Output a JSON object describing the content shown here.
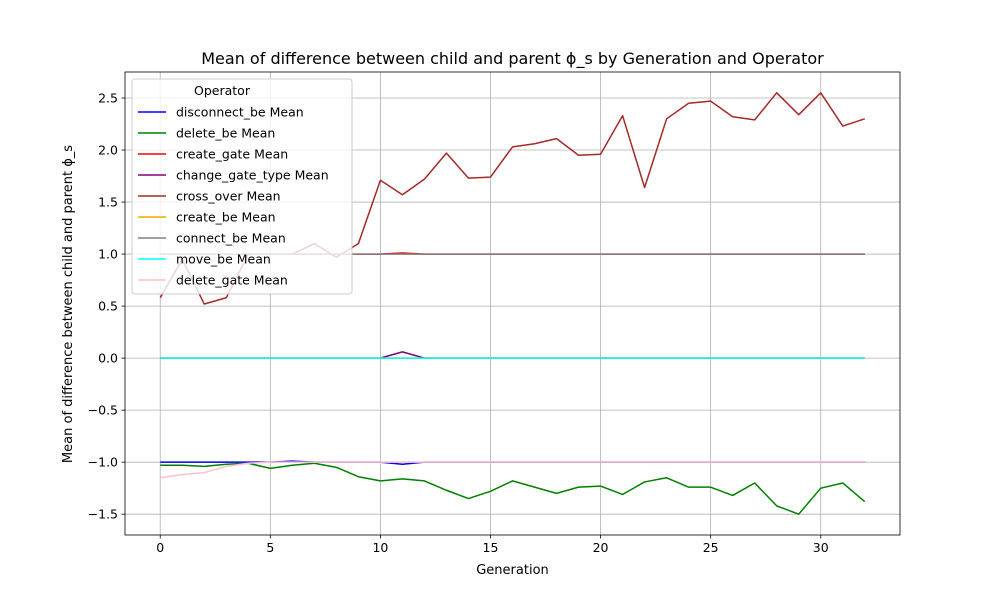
{
  "chart_data": {
    "type": "line",
    "title": "Mean of difference between child and parent ϕ_s by Generation and Operator",
    "xlabel": "Generation",
    "ylabel": "Mean of difference between child and parent ϕ_s",
    "xlim": [
      -1.6,
      33.6
    ],
    "ylim": [
      -1.7,
      2.75
    ],
    "xticks": [
      0,
      5,
      10,
      15,
      20,
      25,
      30
    ],
    "yticks": [
      -1.5,
      -1.0,
      -0.5,
      0.0,
      0.5,
      1.0,
      1.5,
      2.0,
      2.5
    ],
    "ytick_labels": [
      "−1.5",
      "−1.0",
      "−0.5",
      "0.0",
      "0.5",
      "1.0",
      "1.5",
      "2.0",
      "2.5"
    ],
    "grid": true,
    "legend_title": "Operator",
    "legend_position": "upper-left",
    "x": [
      0,
      1,
      2,
      3,
      4,
      5,
      6,
      7,
      8,
      9,
      10,
      11,
      12,
      13,
      14,
      15,
      16,
      17,
      18,
      19,
      20,
      21,
      22,
      23,
      24,
      25,
      26,
      27,
      28,
      29,
      30,
      31,
      32
    ],
    "series": [
      {
        "name": "disconnect_be Mean",
        "color": "#0000ff",
        "values": [
          -1.0,
          -1.0,
          -1.0,
          -1.0,
          -1.0,
          -1.0,
          -0.99,
          -1.0,
          -1.0,
          -1.0,
          -1.0,
          -1.02,
          -1.0,
          -1.0,
          -1.0,
          -1.0,
          -1.0,
          -1.0,
          -1.0,
          -1.0,
          -1.0,
          -1.0,
          -1.0,
          -1.0,
          -1.0,
          -1.0,
          -1.0,
          -1.0,
          -1.0,
          -1.0,
          -1.0,
          -1.0,
          -1.0
        ]
      },
      {
        "name": "delete_be Mean",
        "color": "#008000",
        "values": [
          -1.03,
          -1.03,
          -1.04,
          -1.02,
          -1.01,
          -1.06,
          -1.03,
          -1.01,
          -1.05,
          -1.14,
          -1.18,
          -1.16,
          -1.18,
          -1.27,
          -1.35,
          -1.28,
          -1.18,
          -1.24,
          -1.3,
          -1.24,
          -1.23,
          -1.31,
          -1.19,
          -1.15,
          -1.24,
          -1.24,
          -1.32,
          -1.2,
          -1.42,
          -1.5,
          -1.25,
          -1.2,
          -1.38
        ]
      },
      {
        "name": "create_gate Mean",
        "color": "#ff0000",
        "values": [
          1.0,
          1.0,
          1.0,
          1.0,
          1.0,
          1.0,
          1.0,
          1.0,
          1.0,
          1.0,
          1.0,
          1.01,
          1.0,
          1.0,
          1.0,
          1.0,
          1.0,
          1.0,
          1.0,
          1.0,
          1.0,
          1.0,
          1.0,
          1.0,
          1.0,
          1.0,
          1.0,
          1.0,
          1.0,
          1.0,
          1.0,
          1.0,
          1.0
        ]
      },
      {
        "name": "change_gate_type Mean",
        "color": "#800080",
        "values": [
          0.0,
          0.0,
          0.0,
          0.0,
          0.0,
          0.0,
          0.0,
          0.0,
          0.0,
          0.0,
          0.0,
          0.06,
          0.0,
          0.0,
          0.0,
          0.0,
          0.0,
          0.0,
          0.0,
          0.0,
          0.0,
          0.0,
          0.0,
          0.0,
          0.0,
          0.0,
          0.0,
          0.0,
          0.0,
          0.0,
          0.0,
          0.0,
          0.0
        ]
      },
      {
        "name": "cross_over Mean",
        "color": "#a52a2a",
        "values": [
          0.58,
          0.95,
          0.52,
          0.58,
          1.0,
          1.0,
          1.0,
          1.1,
          0.97,
          1.1,
          1.71,
          1.57,
          1.72,
          1.97,
          1.73,
          1.74,
          2.03,
          2.06,
          2.11,
          1.95,
          1.96,
          2.33,
          1.64,
          2.3,
          2.45,
          2.47,
          2.32,
          2.29,
          2.55,
          2.34,
          2.55,
          2.23,
          2.3
        ]
      },
      {
        "name": "create_be Mean",
        "color": "#ffa500",
        "values": [
          0.0,
          0.0,
          0.0,
          0.0,
          0.0,
          0.0,
          0.0,
          0.0,
          0.0,
          0.0,
          0.0,
          0.0,
          0.0,
          0.0,
          0.0,
          0.0,
          0.0,
          0.0,
          0.0,
          0.0,
          0.0,
          0.0,
          0.0,
          0.0,
          0.0,
          0.0,
          0.0,
          0.0,
          0.0,
          0.0,
          0.0,
          0.0,
          0.0
        ]
      },
      {
        "name": "connect_be Mean",
        "color": "#808080",
        "values": [
          1.0,
          1.0,
          1.0,
          1.0,
          1.0,
          1.0,
          1.0,
          1.0,
          1.0,
          1.0,
          1.0,
          1.0,
          1.0,
          1.0,
          1.0,
          1.0,
          1.0,
          1.0,
          1.0,
          1.0,
          1.0,
          1.0,
          1.0,
          1.0,
          1.0,
          1.0,
          1.0,
          1.0,
          1.0,
          1.0,
          1.0,
          1.0,
          1.0
        ]
      },
      {
        "name": "move_be Mean",
        "color": "#00ffff",
        "values": [
          0.0,
          0.0,
          0.0,
          0.0,
          0.0,
          0.0,
          0.0,
          0.0,
          0.0,
          0.0,
          0.0,
          0.0,
          0.0,
          0.0,
          0.0,
          0.0,
          0.0,
          0.0,
          0.0,
          0.0,
          0.0,
          0.0,
          0.0,
          0.0,
          0.0,
          0.0,
          0.0,
          0.0,
          0.0,
          0.0,
          0.0,
          0.0,
          0.0
        ]
      },
      {
        "name": "delete_gate Mean",
        "color": "#ffc0cb",
        "values": [
          -1.15,
          -1.12,
          -1.1,
          -1.04,
          -1.01,
          -1.0,
          -1.0,
          -1.0,
          -1.0,
          -1.0,
          -1.0,
          -1.0,
          -1.0,
          -1.0,
          -1.0,
          -1.0,
          -1.0,
          -1.0,
          -1.0,
          -1.0,
          -1.0,
          -1.0,
          -1.0,
          -1.0,
          -1.0,
          -1.0,
          -1.0,
          -1.0,
          -1.0,
          -1.0,
          -1.0,
          -1.0,
          -1.0
        ]
      }
    ]
  }
}
